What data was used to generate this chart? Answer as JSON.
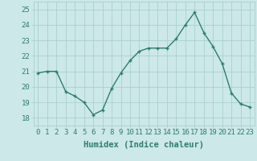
{
  "x": [
    0,
    1,
    2,
    3,
    4,
    5,
    6,
    7,
    8,
    9,
    10,
    11,
    12,
    13,
    14,
    15,
    16,
    17,
    18,
    19,
    20,
    21,
    22,
    23
  ],
  "y": [
    20.9,
    21.0,
    21.0,
    19.7,
    19.4,
    19.0,
    18.2,
    18.5,
    19.9,
    20.9,
    21.7,
    22.3,
    22.5,
    22.5,
    22.5,
    23.1,
    24.0,
    24.8,
    23.5,
    22.6,
    21.5,
    19.6,
    18.9,
    18.7
  ],
  "line_color": "#2e7d6e",
  "marker": "+",
  "marker_size": 3.5,
  "marker_edge_width": 1.0,
  "bg_color": "#cce8e8",
  "grid_color": "#aacfcf",
  "xlabel": "Humidex (Indice chaleur)",
  "ylim": [
    17.5,
    25.5
  ],
  "xlim": [
    -0.5,
    23.5
  ],
  "yticks": [
    18,
    19,
    20,
    21,
    22,
    23,
    24,
    25
  ],
  "xticks": [
    0,
    1,
    2,
    3,
    4,
    5,
    6,
    7,
    8,
    9,
    10,
    11,
    12,
    13,
    14,
    15,
    16,
    17,
    18,
    19,
    20,
    21,
    22,
    23
  ],
  "xtick_labels": [
    "0",
    "1",
    "2",
    "3",
    "4",
    "5",
    "6",
    "7",
    "8",
    "9",
    "10",
    "11",
    "12",
    "13",
    "14",
    "15",
    "16",
    "17",
    "18",
    "19",
    "20",
    "21",
    "22",
    "23"
  ],
  "font_size": 6.5,
  "xlabel_font_size": 7.5,
  "line_width": 1.0,
  "tick_color": "#2e7d6e",
  "label_color": "#2e7d6e"
}
